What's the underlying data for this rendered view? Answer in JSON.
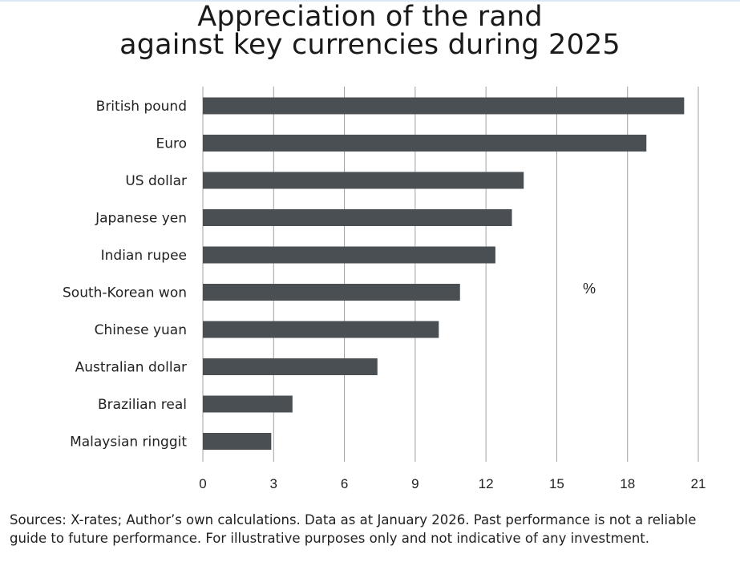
{
  "chart_data": {
    "type": "bar",
    "orientation": "horizontal",
    "title_lines": [
      "Appreciation of the rand",
      "against key currencies during 2025"
    ],
    "categories": [
      "British pound",
      "Euro",
      "US dollar",
      "Japanese yen",
      "Indian rupee",
      "South-Korean won",
      "Chinese yuan",
      "Australian dollar",
      "Brazilian real",
      "Malaysian ringgit"
    ],
    "values": [
      20.4,
      18.8,
      13.6,
      13.1,
      12.4,
      10.9,
      10.0,
      7.4,
      3.8,
      2.9
    ],
    "unit_label": "%",
    "xlim": [
      0,
      21
    ],
    "xticks": [
      "0",
      "3",
      "6",
      "9",
      "12",
      "15",
      "18",
      "21"
    ],
    "grid": "vertical",
    "bar_color": "#4a4f54",
    "grid_color": "#a0a0a0"
  },
  "footnote": "Sources: X-rates; Author’s own calculations. Data as at January 2026. Past performance is not a reliable guide to future performance. For illustrative purposes only and not indicative of any investment."
}
